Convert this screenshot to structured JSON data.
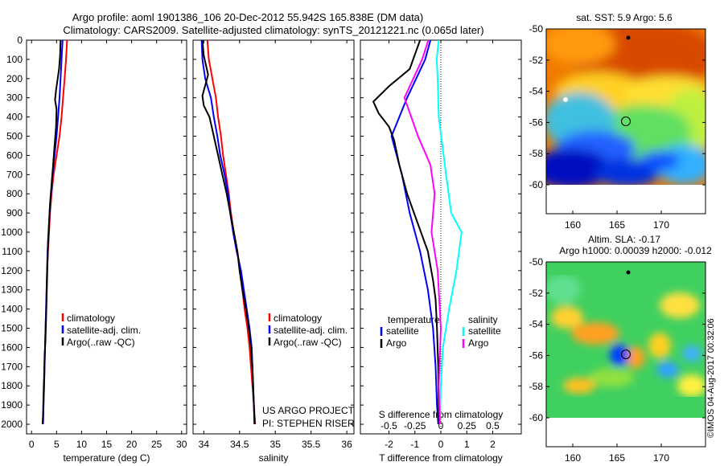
{
  "title_line1": "Argo profile: aoml 1901386_106 20-Dec-2012 55.942S 165.838E (DM data)",
  "title_line2": "Climatology: CARS2009. Satellite-adjusted climatology: synTS_20121221.nc (0.065d later)",
  "credit": "US ARGO PROJECT",
  "pi": "PI: STEPHEN RISER",
  "timestamp": "©IMOS 04-Aug-2017 00:32:06",
  "colors": {
    "red": "#ff0000",
    "blue": "#0000ff",
    "black": "#000000",
    "cyan": "#00ffff",
    "magenta": "#ff00ff"
  },
  "chart_data": [
    {
      "type": "line",
      "xlabel": "temperature (deg C)",
      "ylabel": "",
      "xlim": [
        -1,
        31
      ],
      "ylim": [
        2050,
        0
      ],
      "xticks": [
        0,
        5,
        10,
        15,
        20,
        25,
        30
      ],
      "yticks": [
        0,
        100,
        200,
        300,
        400,
        500,
        600,
        700,
        800,
        900,
        1000,
        1100,
        1200,
        1300,
        1400,
        1500,
        1600,
        1700,
        1800,
        1900,
        2000
      ],
      "legend": [
        "climatology",
        "satellite-adj. clim.",
        "Argo(..raw -QC)"
      ],
      "series": [
        {
          "name": "climatology",
          "color": "red",
          "points": [
            [
              7.1,
              0
            ],
            [
              6.9,
              100
            ],
            [
              6.6,
              200
            ],
            [
              6.3,
              300
            ],
            [
              6.0,
              400
            ],
            [
              5.6,
              500
            ],
            [
              5.0,
              600
            ],
            [
              4.4,
              700
            ],
            [
              4.0,
              800
            ],
            [
              3.7,
              900
            ],
            [
              3.5,
              1000
            ],
            [
              3.3,
              1100
            ],
            [
              3.1,
              1200
            ],
            [
              3.0,
              1300
            ],
            [
              2.9,
              1400
            ],
            [
              2.8,
              1500
            ],
            [
              2.7,
              1600
            ],
            [
              2.6,
              1700
            ],
            [
              2.5,
              1800
            ],
            [
              2.4,
              1900
            ],
            [
              2.3,
              2000
            ]
          ]
        },
        {
          "name": "satellite-adj. clim.",
          "color": "blue",
          "points": [
            [
              6.2,
              0
            ],
            [
              6.0,
              100
            ],
            [
              5.8,
              200
            ],
            [
              5.6,
              300
            ],
            [
              5.3,
              400
            ],
            [
              5.0,
              500
            ],
            [
              4.6,
              600
            ],
            [
              4.2,
              700
            ],
            [
              3.9,
              800
            ],
            [
              3.6,
              900
            ],
            [
              3.4,
              1000
            ],
            [
              3.2,
              1100
            ],
            [
              3.1,
              1200
            ],
            [
              3.0,
              1300
            ],
            [
              2.9,
              1400
            ],
            [
              2.8,
              1500
            ],
            [
              2.7,
              1600
            ],
            [
              2.6,
              1700
            ],
            [
              2.5,
              1800
            ],
            [
              2.4,
              1900
            ],
            [
              2.3,
              2000
            ]
          ]
        },
        {
          "name": "Argo(..raw -QC)",
          "color": "black",
          "points": [
            [
              5.8,
              0
            ],
            [
              5.7,
              80
            ],
            [
              5.5,
              150
            ],
            [
              4.9,
              260
            ],
            [
              4.7,
              310
            ],
            [
              5.0,
              360
            ],
            [
              4.9,
              450
            ],
            [
              4.6,
              550
            ],
            [
              4.3,
              650
            ],
            [
              4.0,
              750
            ],
            [
              3.7,
              850
            ],
            [
              3.5,
              950
            ],
            [
              3.3,
              1050
            ],
            [
              3.2,
              1150
            ],
            [
              3.1,
              1250
            ],
            [
              3.0,
              1350
            ],
            [
              2.9,
              1450
            ],
            [
              2.8,
              1550
            ],
            [
              2.6,
              1650
            ],
            [
              2.5,
              1750
            ],
            [
              2.4,
              1850
            ],
            [
              2.3,
              1950
            ],
            [
              2.2,
              2000
            ]
          ]
        }
      ]
    },
    {
      "type": "line",
      "xlabel": "salinity",
      "ylabel": "",
      "xlim": [
        33.85,
        36.1
      ],
      "ylim": [
        2050,
        0
      ],
      "xticks": [
        34,
        34.5,
        35,
        35.5,
        36
      ],
      "xticklabels": [
        "34",
        "34.5",
        "35",
        "35.5",
        "36"
      ],
      "legend": [
        "climatology",
        "satellite-adj. clim.",
        "Argo(..raw -QC)"
      ],
      "series": [
        {
          "name": "climatology",
          "color": "red",
          "points": [
            [
              34.05,
              0
            ],
            [
              34.07,
              100
            ],
            [
              34.12,
              200
            ],
            [
              34.17,
              300
            ],
            [
              34.2,
              400
            ],
            [
              34.24,
              500
            ],
            [
              34.27,
              600
            ],
            [
              34.31,
              700
            ],
            [
              34.35,
              800
            ],
            [
              34.38,
              900
            ],
            [
              34.42,
              1000
            ],
            [
              34.47,
              1100
            ],
            [
              34.51,
              1200
            ],
            [
              34.54,
              1300
            ],
            [
              34.57,
              1400
            ],
            [
              34.61,
              1500
            ],
            [
              34.64,
              1600
            ],
            [
              34.66,
              1700
            ],
            [
              34.68,
              1800
            ],
            [
              34.7,
              1900
            ],
            [
              34.72,
              2000
            ]
          ]
        },
        {
          "name": "satellite-adj. clim.",
          "color": "blue",
          "points": [
            [
              33.97,
              0
            ],
            [
              33.98,
              100
            ],
            [
              34.02,
              200
            ],
            [
              34.1,
              300
            ],
            [
              34.14,
              400
            ],
            [
              34.19,
              500
            ],
            [
              34.23,
              600
            ],
            [
              34.29,
              700
            ],
            [
              34.34,
              800
            ],
            [
              34.37,
              900
            ],
            [
              34.41,
              1000
            ],
            [
              34.46,
              1100
            ],
            [
              34.52,
              1200
            ],
            [
              34.56,
              1300
            ],
            [
              34.6,
              1400
            ],
            [
              34.64,
              1500
            ],
            [
              34.67,
              1600
            ],
            [
              34.68,
              1700
            ],
            [
              34.69,
              1800
            ],
            [
              34.7,
              1900
            ],
            [
              34.71,
              2000
            ]
          ]
        },
        {
          "name": "Argo(..raw -QC)",
          "color": "black",
          "points": [
            [
              33.98,
              0
            ],
            [
              34.0,
              80
            ],
            [
              34.06,
              180
            ],
            [
              33.98,
              290
            ],
            [
              34.0,
              340
            ],
            [
              34.08,
              400
            ],
            [
              34.14,
              500
            ],
            [
              34.2,
              600
            ],
            [
              34.26,
              700
            ],
            [
              34.32,
              800
            ],
            [
              34.37,
              900
            ],
            [
              34.42,
              1000
            ],
            [
              34.47,
              1100
            ],
            [
              34.5,
              1200
            ],
            [
              34.54,
              1300
            ],
            [
              34.59,
              1400
            ],
            [
              34.63,
              1500
            ],
            [
              34.66,
              1600
            ],
            [
              34.68,
              1700
            ],
            [
              34.69,
              1800
            ],
            [
              34.7,
              1900
            ],
            [
              34.71,
              2000
            ]
          ]
        }
      ]
    },
    {
      "type": "line",
      "xlabel": "T difference from climatology",
      "xlabel_top": "S difference from climatology",
      "ylabel": "",
      "xlim": [
        -3.1,
        3.1
      ],
      "ylim": [
        2050,
        0
      ],
      "xticks_bottom": [
        -2,
        -1,
        0,
        1,
        2
      ],
      "xticks_top": [
        -0.5,
        -0.25,
        0,
        0.25,
        0.5
      ],
      "legend_titles": [
        "temperature",
        "salinity"
      ],
      "legend": [
        "satellite",
        "Argo",
        "satellite",
        "Argo"
      ],
      "series": [
        {
          "name": "satellite",
          "group": "temperature",
          "color": "blue",
          "points": [
            [
              -0.4,
              0
            ],
            [
              -0.6,
              100
            ],
            [
              -1.3,
              300
            ],
            [
              -1.9,
              500
            ],
            [
              -1.5,
              700
            ],
            [
              -1.2,
              900
            ],
            [
              -0.8,
              1100
            ],
            [
              -0.5,
              1300
            ],
            [
              -0.3,
              1500
            ],
            [
              -0.2,
              1700
            ],
            [
              -0.15,
              1900
            ],
            [
              -0.1,
              2000
            ]
          ]
        },
        {
          "name": "Argo",
          "group": "temperature",
          "color": "black",
          "points": [
            [
              -0.8,
              0
            ],
            [
              -1.2,
              150
            ],
            [
              -2.0,
              240
            ],
            [
              -2.6,
              320
            ],
            [
              -2.4,
              380
            ],
            [
              -2.0,
              450
            ],
            [
              -1.8,
              520
            ],
            [
              -1.6,
              650
            ],
            [
              -1.3,
              800
            ],
            [
              -0.9,
              950
            ],
            [
              -0.5,
              1100
            ],
            [
              -0.3,
              1250
            ],
            [
              -0.2,
              1350
            ],
            [
              -0.15,
              1500
            ],
            [
              -0.1,
              1700
            ],
            [
              -0.08,
              2000
            ]
          ]
        },
        {
          "name": "satellite",
          "group": "salinity",
          "color": "cyan",
          "points": [
            [
              -0.02,
              0
            ],
            [
              -0.04,
              100
            ],
            [
              -0.03,
              200
            ],
            [
              -0.02,
              400
            ],
            [
              0.05,
              700
            ],
            [
              0.1,
              900
            ],
            [
              0.2,
              1000
            ],
            [
              0.15,
              1200
            ],
            [
              0.08,
              1400
            ],
            [
              0.02,
              1600
            ],
            [
              0.0,
              1800
            ],
            [
              -0.01,
              2000
            ]
          ]
        },
        {
          "name": "Argo",
          "group": "salinity",
          "color": "magenta",
          "points": [
            [
              -0.12,
              0
            ],
            [
              -0.18,
              100
            ],
            [
              -0.35,
              300
            ],
            [
              -0.22,
              500
            ],
            [
              -0.1,
              650
            ],
            [
              -0.06,
              800
            ],
            [
              -0.09,
              1000
            ],
            [
              -0.03,
              1200
            ],
            [
              0.0,
              1500
            ],
            [
              -0.02,
              1800
            ],
            [
              -0.01,
              2000
            ]
          ]
        }
      ]
    },
    {
      "type": "heatmap",
      "title": "sat. SST: 5.9 Argo: 5.6",
      "xlim": [
        157,
        175
      ],
      "ylim": [
        -62,
        -50
      ],
      "xticks": [
        160,
        165,
        170
      ],
      "yticks": [
        -50,
        -52,
        -54,
        -56,
        -58,
        -60
      ],
      "float_marker": [
        165.838,
        -55.942
      ]
    },
    {
      "type": "heatmap",
      "title": "Altim. SLA: -0.17",
      "subtitle": "Argo h1000: 0.00039 h2000: -0.012",
      "xlim": [
        157,
        175
      ],
      "ylim": [
        -62,
        -50
      ],
      "xticks": [
        160,
        165,
        170
      ],
      "yticks": [
        -50,
        -52,
        -54,
        -56,
        -58,
        -60
      ],
      "float_marker": [
        165.838,
        -55.942
      ]
    }
  ]
}
